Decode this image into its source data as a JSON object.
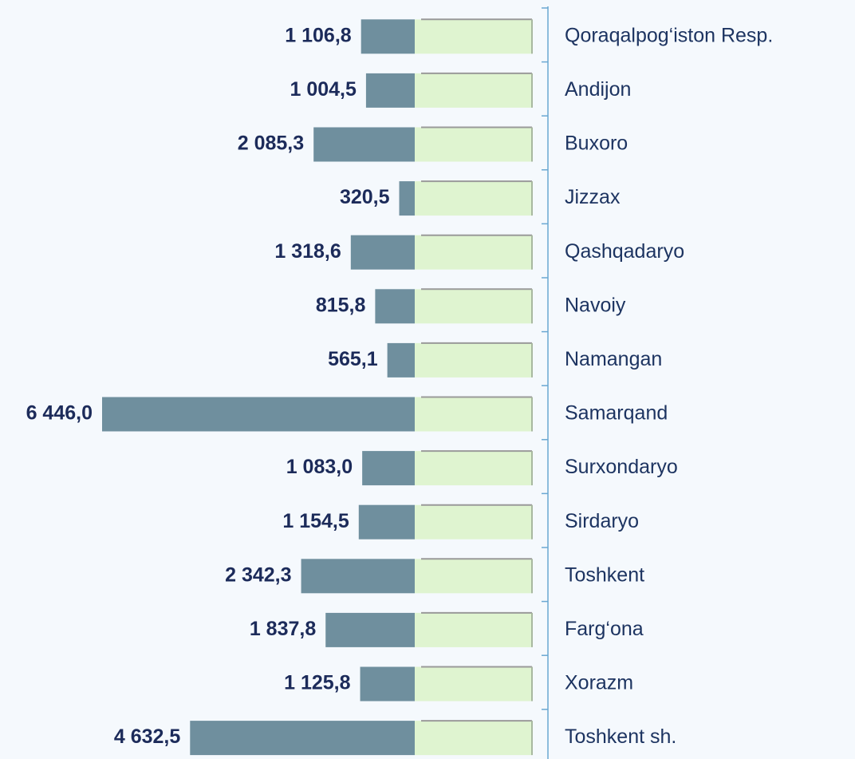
{
  "chart_data": {
    "type": "barh",
    "categories": [
      "Qoraqalpog‘iston Resp.",
      "Andijon",
      "Buxoro",
      "Jizzax",
      "Qashqadaryo",
      "Navoiy",
      "Namangan",
      "Samarqand",
      "Surxondaryo",
      "Sirdaryo",
      "Toshkent",
      "Farg‘ona",
      "Xorazm",
      "Toshkent sh."
    ],
    "values": [
      1106.8,
      1004.5,
      2085.3,
      320.5,
      1318.6,
      815.8,
      565.1,
      6446.0,
      1083.0,
      1154.5,
      2342.3,
      1837.8,
      1125.8,
      4632.5
    ],
    "value_labels": [
      "1 106,8",
      "1 004,5",
      "2 085,3",
      "320,5",
      "1 318,6",
      "815,8",
      "565,1",
      "6 446,0",
      "1 083,0",
      "1 154,5",
      "2 342,3",
      "1 837,8",
      "1 125,8",
      "4 632,5"
    ],
    "color": "#6f8f9e"
  }
}
